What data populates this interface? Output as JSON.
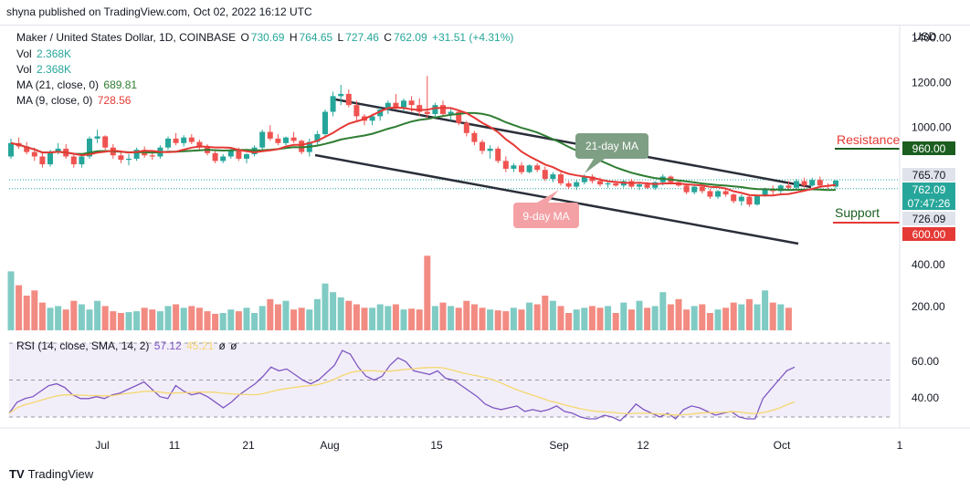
{
  "header": {
    "text": "shyna published on TradingView.com, Oct 02, 2022 16:12 UTC"
  },
  "legend": {
    "symbol": "Maker / United States Dollar, 1D, COINBASE",
    "o_label": "O",
    "o": "730.69",
    "h_label": "H",
    "h": "764.65",
    "l_label": "L",
    "l": "727.46",
    "c_label": "C",
    "c": "762.09",
    "change": "+31.51 (+4.31%)",
    "vol1_label": "Vol",
    "vol1": "2.368K",
    "vol2_label": "Vol",
    "vol2": "2.368K",
    "ma21_label": "MA (21, close, 0)",
    "ma21": "689.81",
    "ma9_label": "MA (9, close, 0)",
    "ma9": "728.56",
    "rsi_label": "RSI (14, close, SMA, 14, 2)",
    "rsi": "57.12",
    "rsi_sma": "45.21",
    "rsi_x1": "ø",
    "rsi_x2": "ø"
  },
  "annotations": {
    "ma21_callout": "21-day MA",
    "ma9_callout": "9-day MA",
    "resistance": "Resistance",
    "support": "Support"
  },
  "price_axis": {
    "currency": "USD",
    "ticks": [
      "1400.00",
      "1200.00",
      "1000.00"
    ],
    "labels": [
      {
        "text": "960.00",
        "value": 960,
        "color": "#1b5e20"
      },
      {
        "text": "765.70",
        "value": 765.7,
        "color": "#e0e3eb"
      },
      {
        "text": "762.09",
        "value": 762.09,
        "color": "#26a69a"
      },
      {
        "text": "07:47:26",
        "value": 745,
        "color": "#26a69a"
      },
      {
        "text": "726.09",
        "value": 726.09,
        "color": "#e0e3eb"
      },
      {
        "text": "600.00",
        "value": 600,
        "color": "#e53935"
      }
    ]
  },
  "volume_axis": {
    "ticks": [
      "400.00",
      "200.00"
    ]
  },
  "rsi_axis": {
    "ticks": [
      "60.00",
      "40.00"
    ]
  },
  "time_axis": {
    "labels": [
      "Jul",
      "11",
      "21",
      "Aug",
      "15",
      "Sep",
      "12",
      "Oct",
      "1"
    ]
  },
  "footer": {
    "brand": "TradingView",
    "logo": "TV"
  },
  "colors": {
    "up": "#26a69a",
    "down": "#ef5350",
    "ma21": "#2e7d32",
    "ma9": "#e53935",
    "rsi": "#7e57c2",
    "rsi_sma": "#f5d76e"
  },
  "chart_data": {
    "type": "candlestick",
    "title": "Maker / United States Dollar, 1D, COINBASE",
    "ylim": [
      480,
      1460
    ],
    "ylabel": "USD",
    "candles": [
      [
        870,
        950,
        860,
        930
      ],
      [
        930,
        955,
        905,
        915
      ],
      [
        915,
        935,
        880,
        890
      ],
      [
        890,
        910,
        850,
        870
      ],
      [
        870,
        890,
        820,
        835
      ],
      [
        835,
        900,
        825,
        890
      ],
      [
        890,
        930,
        880,
        905
      ],
      [
        905,
        925,
        860,
        870
      ],
      [
        870,
        880,
        820,
        835
      ],
      [
        835,
        880,
        820,
        870
      ],
      [
        870,
        960,
        860,
        950
      ],
      [
        950,
        990,
        930,
        960
      ],
      [
        960,
        965,
        900,
        910
      ],
      [
        910,
        925,
        860,
        875
      ],
      [
        875,
        890,
        840,
        855
      ],
      [
        855,
        880,
        830,
        860
      ],
      [
        860,
        910,
        850,
        900
      ],
      [
        900,
        915,
        865,
        875
      ],
      [
        875,
        890,
        855,
        870
      ],
      [
        870,
        920,
        860,
        910
      ],
      [
        910,
        960,
        900,
        950
      ],
      [
        950,
        975,
        920,
        930
      ],
      [
        930,
        965,
        915,
        955
      ],
      [
        955,
        970,
        925,
        935
      ],
      [
        935,
        945,
        900,
        910
      ],
      [
        910,
        925,
        875,
        885
      ],
      [
        885,
        895,
        840,
        850
      ],
      [
        850,
        880,
        840,
        870
      ],
      [
        870,
        905,
        860,
        895
      ],
      [
        895,
        910,
        850,
        860
      ],
      [
        860,
        885,
        840,
        880
      ],
      [
        880,
        920,
        870,
        910
      ],
      [
        910,
        990,
        900,
        980
      ],
      [
        980,
        1010,
        940,
        950
      ],
      [
        950,
        970,
        920,
        930
      ],
      [
        930,
        960,
        920,
        955
      ],
      [
        955,
        980,
        930,
        940
      ],
      [
        940,
        945,
        880,
        890
      ],
      [
        890,
        950,
        870,
        935
      ],
      [
        935,
        985,
        920,
        970
      ],
      [
        970,
        1080,
        960,
        1070
      ],
      [
        1070,
        1160,
        1050,
        1140
      ],
      [
        1140,
        1190,
        1100,
        1150
      ],
      [
        1150,
        1170,
        1090,
        1100
      ],
      [
        1100,
        1120,
        1030,
        1050
      ],
      [
        1050,
        1060,
        1010,
        1030
      ],
      [
        1030,
        1060,
        1010,
        1050
      ],
      [
        1050,
        1090,
        1030,
        1080
      ],
      [
        1080,
        1120,
        1060,
        1110
      ],
      [
        1110,
        1150,
        1080,
        1090
      ],
      [
        1090,
        1130,
        1070,
        1120
      ],
      [
        1120,
        1140,
        1070,
        1100
      ],
      [
        1100,
        1130,
        1050,
        1070
      ],
      [
        1070,
        1230,
        1040,
        1060
      ],
      [
        1060,
        1110,
        1050,
        1100
      ],
      [
        1100,
        1120,
        1050,
        1060
      ],
      [
        1060,
        1090,
        1030,
        1070
      ],
      [
        1070,
        1075,
        1010,
        1020
      ],
      [
        1020,
        1030,
        960,
        975
      ],
      [
        975,
        985,
        920,
        935
      ],
      [
        935,
        945,
        880,
        895
      ],
      [
        895,
        920,
        860,
        905
      ],
      [
        905,
        915,
        840,
        850
      ],
      [
        850,
        870,
        800,
        815
      ],
      [
        815,
        840,
        800,
        830
      ],
      [
        830,
        845,
        790,
        800
      ],
      [
        800,
        835,
        795,
        830
      ],
      [
        830,
        840,
        800,
        810
      ],
      [
        810,
        825,
        760,
        770
      ],
      [
        770,
        800,
        755,
        790
      ],
      [
        790,
        800,
        740,
        750
      ],
      [
        750,
        760,
        725,
        735
      ],
      [
        735,
        765,
        720,
        755
      ],
      [
        755,
        790,
        745,
        780
      ],
      [
        780,
        790,
        750,
        760
      ],
      [
        760,
        775,
        735,
        745
      ],
      [
        745,
        760,
        730,
        750
      ],
      [
        750,
        760,
        735,
        740
      ],
      [
        740,
        765,
        730,
        760
      ],
      [
        760,
        770,
        730,
        735
      ],
      [
        735,
        750,
        720,
        745
      ],
      [
        745,
        755,
        725,
        730
      ],
      [
        730,
        760,
        720,
        755
      ],
      [
        755,
        790,
        740,
        780
      ],
      [
        780,
        785,
        745,
        755
      ],
      [
        755,
        765,
        735,
        740
      ],
      [
        740,
        745,
        700,
        710
      ],
      [
        710,
        740,
        700,
        735
      ],
      [
        735,
        745,
        705,
        715
      ],
      [
        715,
        725,
        680,
        690
      ],
      [
        690,
        720,
        680,
        715
      ],
      [
        715,
        730,
        690,
        700
      ],
      [
        700,
        705,
        660,
        670
      ],
      [
        670,
        700,
        650,
        690
      ],
      [
        690,
        700,
        645,
        655
      ],
      [
        655,
        700,
        650,
        695
      ],
      [
        695,
        730,
        690,
        725
      ],
      [
        725,
        740,
        700,
        715
      ],
      [
        715,
        745,
        705,
        740
      ],
      [
        740,
        760,
        720,
        730
      ],
      [
        730,
        770,
        725,
        760
      ],
      [
        760,
        775,
        730,
        740
      ],
      [
        740,
        775,
        735,
        765
      ],
      [
        765,
        780,
        730,
        740
      ],
      [
        740,
        750,
        725,
        735
      ],
      [
        735,
        765,
        727,
        762
      ]
    ],
    "volume": [
      340,
      260,
      200,
      230,
      160,
      130,
      140,
      120,
      170,
      150,
      120,
      170,
      140,
      110,
      100,
      105,
      110,
      130,
      120,
      110,
      140,
      150,
      130,
      140,
      130,
      110,
      95,
      100,
      120,
      110,
      130,
      100,
      140,
      180,
      150,
      170,
      120,
      130,
      120,
      180,
      270,
      220,
      190,
      170,
      150,
      130,
      130,
      150,
      140,
      150,
      120,
      125,
      120,
      430,
      140,
      160,
      140,
      130,
      170,
      150,
      130,
      120,
      115,
      110,
      130,
      120,
      160,
      150,
      200,
      170,
      140,
      100,
      120,
      130,
      140,
      130,
      140,
      100,
      160,
      120,
      170,
      130,
      140,
      220,
      150,
      180,
      120,
      140,
      150,
      100,
      120,
      130,
      160,
      150,
      180,
      150,
      230,
      160,
      150,
      130
    ],
    "rsi": [
      32,
      38,
      40,
      41,
      44,
      47,
      48,
      46,
      42,
      40,
      40,
      41,
      40,
      42,
      43,
      45,
      47,
      49,
      45,
      41,
      40,
      47,
      44,
      42,
      43,
      41,
      38,
      35,
      38,
      42,
      45,
      48,
      52,
      57,
      55,
      56,
      53,
      50,
      48,
      50,
      54,
      58,
      66,
      64,
      57,
      52,
      50,
      52,
      58,
      62,
      60,
      55,
      54,
      53,
      55,
      51,
      50,
      47,
      44,
      41,
      37,
      35,
      34,
      35,
      36,
      33,
      34,
      33,
      34,
      36,
      33,
      32,
      30,
      29,
      29,
      31,
      30,
      28,
      32,
      37,
      34,
      32,
      30,
      32,
      29,
      34,
      36,
      35,
      33,
      31,
      32,
      33,
      30,
      29,
      29,
      40,
      45,
      50,
      55,
      57
    ],
    "annotations": [
      "21-day MA",
      "9-day MA",
      "Resistance",
      "Support"
    ]
  }
}
